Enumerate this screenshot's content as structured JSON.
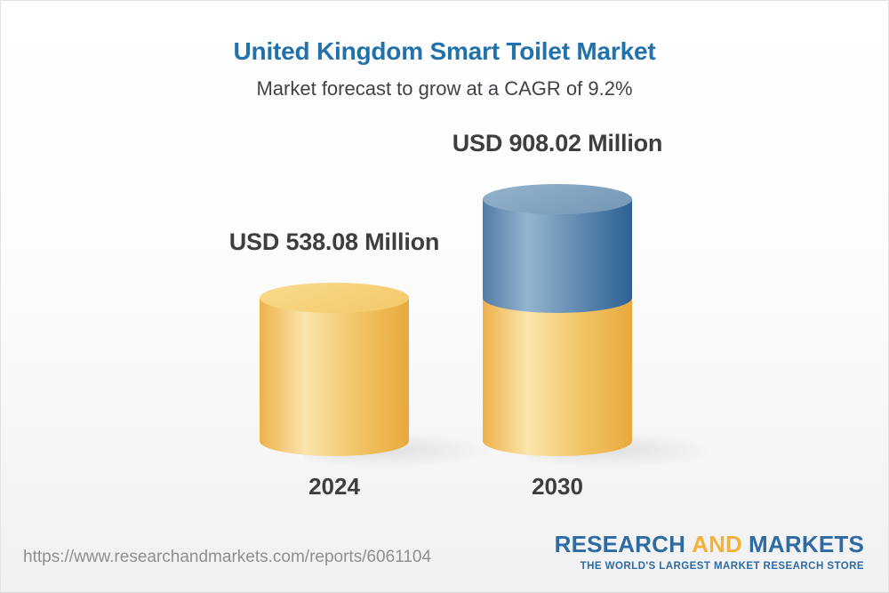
{
  "header": {
    "title": "United Kingdom Smart Toilet Market",
    "subtitle": "Market forecast to grow at a CAGR of 9.2%"
  },
  "chart_data": {
    "type": "bar",
    "subtype": "3d-cylinder-stacked",
    "title": "United Kingdom Smart Toilet Market",
    "subtitle": "Market forecast to grow at a CAGR of 9.2%",
    "unit": "USD Million",
    "cagr_pct": 9.2,
    "categories": [
      "2024",
      "2030"
    ],
    "values": [
      538.08,
      908.02
    ],
    "legend": "none",
    "axes": "none",
    "bars": [
      {
        "category": "2024",
        "value": 538.08,
        "value_label": "USD 538.08 Million",
        "segments": [
          {
            "name": "base",
            "value": 538.08,
            "color": "yellow"
          }
        ]
      },
      {
        "category": "2030",
        "value": 908.02,
        "value_label": "USD 908.02 Million",
        "segments": [
          {
            "name": "base",
            "value": 538.08,
            "color": "yellow"
          },
          {
            "name": "growth",
            "value": 369.94,
            "color": "blue"
          }
        ]
      }
    ],
    "colors": {
      "yellow": {
        "body": [
          "#edb14c",
          "#fae5ab",
          "#f2c464",
          "#e8a93e"
        ],
        "cap": [
          "#f9db8e",
          "#f3c867"
        ]
      },
      "blue": {
        "body": [
          "#527ca6",
          "#93b5d0",
          "#5e88af",
          "#2d6194"
        ],
        "cap": [
          "#94b3cc",
          "#7396b6"
        ]
      },
      "label_text": "#3d3e42",
      "title_text": "#2171ad"
    }
  },
  "footer": {
    "url": "https://www.researchandmarkets.com/reports/6061104",
    "logo": {
      "word1": "RESEARCH",
      "word2": "AND",
      "word3": "MARKETS",
      "tagline": "THE WORLD'S LARGEST MARKET RESEARCH STORE",
      "blue": "#2e6ba3",
      "yellow": "#f2b33c"
    }
  }
}
